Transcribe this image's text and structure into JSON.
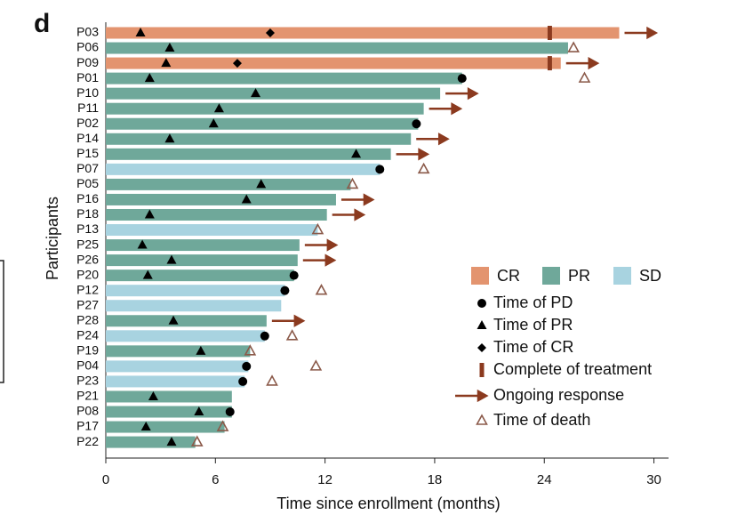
{
  "panel_label": "d",
  "chart_data": {
    "type": "swimmer",
    "x_label": "Time since enrollment (months)",
    "y_label": "Participants",
    "categories": [
      "P03",
      "P06",
      "P09",
      "P01",
      "P10",
      "P11",
      "P02",
      "P14",
      "P15",
      "P07",
      "P05",
      "P16",
      "P18",
      "P13",
      "P25",
      "P26",
      "P20",
      "P12",
      "P27",
      "P28",
      "P24",
      "P19",
      "P04",
      "P23",
      "P21",
      "P08",
      "P17",
      "P22"
    ],
    "xlim": [
      0,
      30.8
    ],
    "xticks": [
      0,
      6,
      12,
      18,
      24,
      30
    ],
    "series": [
      {
        "name": "CR",
        "color": "#e3946f",
        "values": [
          28.1,
          null,
          24.9,
          null,
          null,
          null,
          null,
          null,
          null,
          null,
          null,
          null,
          null,
          null,
          null,
          null,
          null,
          null,
          null,
          null,
          null,
          null,
          null,
          null,
          null,
          null,
          null,
          null
        ]
      },
      {
        "name": "PR",
        "color": "#6fa89a",
        "values": [
          null,
          25.3,
          null,
          19.5,
          18.3,
          17.4,
          17.1,
          16.7,
          15.6,
          null,
          13.4,
          12.6,
          12.1,
          null,
          10.6,
          10.5,
          10.3,
          null,
          null,
          8.8,
          null,
          7.9,
          null,
          null,
          6.9,
          6.9,
          6.5,
          4.9
        ]
      },
      {
        "name": "SD",
        "color": "#a8d3e0",
        "values": [
          null,
          null,
          null,
          null,
          null,
          null,
          null,
          null,
          null,
          15.0,
          null,
          null,
          null,
          11.6,
          null,
          null,
          null,
          9.8,
          9.6,
          null,
          8.7,
          null,
          7.8,
          7.6,
          null,
          null,
          null,
          null
        ]
      }
    ],
    "events": [
      {
        "name": "Time of PD",
        "marker": "circle",
        "color": "#000000",
        "values": [
          null,
          null,
          null,
          19.5,
          null,
          null,
          17.0,
          null,
          null,
          15.0,
          null,
          null,
          null,
          null,
          null,
          null,
          10.3,
          9.8,
          null,
          null,
          8.7,
          null,
          7.7,
          7.5,
          null,
          6.8,
          null,
          null
        ]
      },
      {
        "name": "Time of PR",
        "marker": "triangle",
        "color": "#000000",
        "values": [
          1.9,
          3.5,
          3.3,
          2.4,
          8.2,
          6.2,
          5.9,
          3.5,
          13.7,
          null,
          8.5,
          7.7,
          2.4,
          null,
          2.0,
          3.6,
          2.3,
          null,
          null,
          3.7,
          null,
          5.2,
          null,
          null,
          2.6,
          5.1,
          2.2,
          3.6
        ]
      },
      {
        "name": "Time of CR",
        "marker": "diamond",
        "color": "#000000",
        "values": [
          9.0,
          null,
          7.2,
          null,
          null,
          null,
          null,
          null,
          null,
          null,
          null,
          null,
          null,
          null,
          null,
          null,
          null,
          null,
          null,
          null,
          null,
          null,
          null,
          null,
          null,
          null,
          null,
          null
        ]
      },
      {
        "name": "Complete of treatment",
        "marker": "bar",
        "color": "#8b3a1f",
        "values": [
          24.3,
          null,
          24.3,
          null,
          null,
          null,
          null,
          null,
          null,
          null,
          null,
          null,
          null,
          null,
          null,
          null,
          null,
          null,
          null,
          null,
          null,
          null,
          null,
          null,
          null,
          null,
          null,
          null
        ]
      },
      {
        "name": "Ongoing response",
        "marker": "arrow",
        "color": "#8b3a1f",
        "values": [
          true,
          null,
          true,
          null,
          true,
          true,
          null,
          true,
          true,
          null,
          null,
          true,
          true,
          null,
          true,
          true,
          null,
          null,
          null,
          true,
          null,
          null,
          null,
          null,
          null,
          null,
          null,
          null
        ]
      },
      {
        "name": "Time of death",
        "marker": "open-triangle",
        "color": "#8b5a4a",
        "values": [
          null,
          25.6,
          null,
          26.2,
          null,
          null,
          null,
          null,
          null,
          17.4,
          13.5,
          null,
          null,
          11.6,
          null,
          null,
          null,
          11.8,
          null,
          null,
          10.2,
          7.9,
          11.5,
          9.1,
          null,
          null,
          6.4,
          5.0
        ]
      }
    ]
  }
}
